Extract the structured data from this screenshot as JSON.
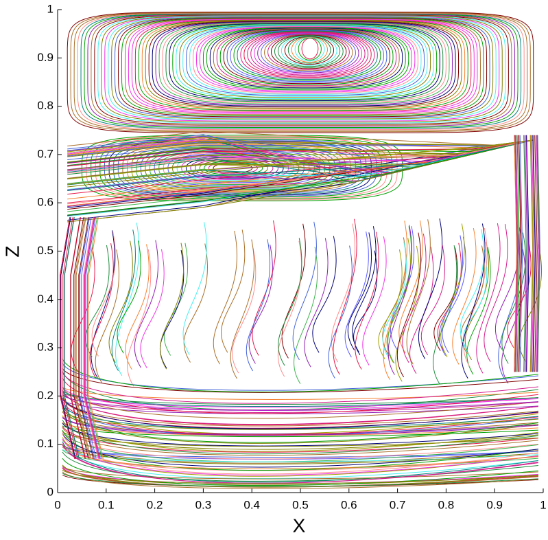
{
  "chart_data": {
    "type": "streamline",
    "xlabel": "X",
    "ylabel": "Z",
    "xlim": [
      0,
      1
    ],
    "ylim": [
      0,
      1
    ],
    "xticks": [
      0,
      0.1,
      0.2,
      0.3,
      0.4,
      0.5,
      0.6,
      0.7,
      0.8,
      0.9,
      1
    ],
    "yticks": [
      0,
      0.1,
      0.2,
      0.3,
      0.4,
      0.5,
      0.6,
      0.7,
      0.8,
      0.9,
      1
    ]
  }
}
